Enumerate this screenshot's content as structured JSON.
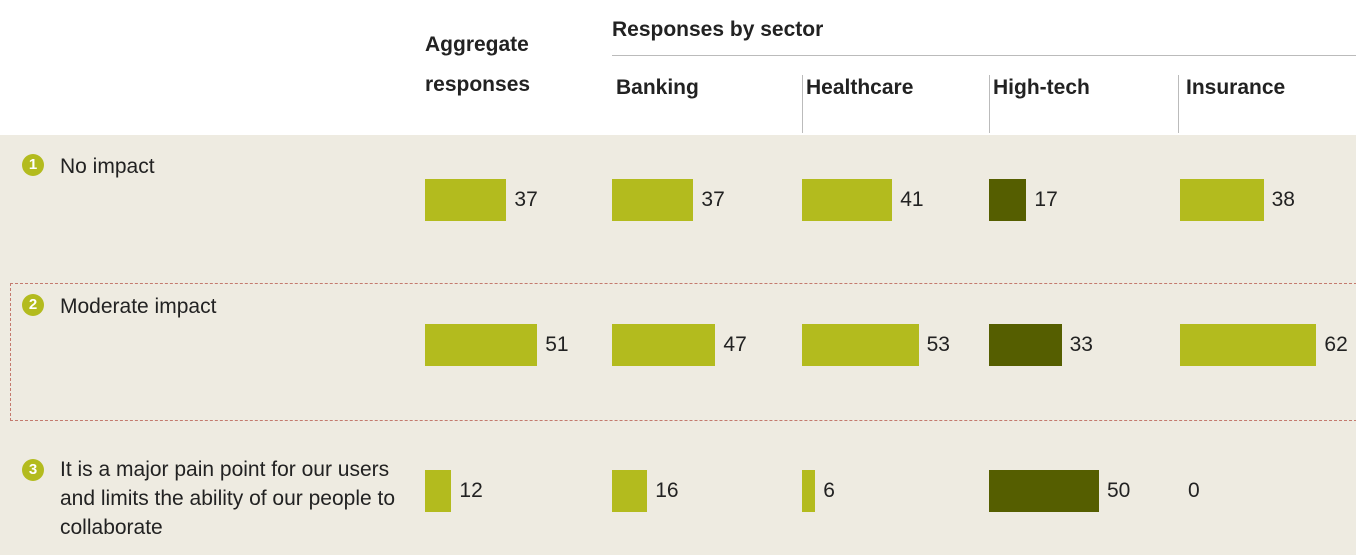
{
  "chart_data": {
    "type": "bar",
    "group_label": "Responses by sector",
    "category_numbers": [
      1,
      2,
      3
    ],
    "categories": [
      "No impact",
      "Moderate impact",
      "It is a major pain point for our users and limits the ability of our people to collaborate"
    ],
    "series": [
      {
        "name": "Aggregate responses",
        "color": "#b3bb1e",
        "values": [
          37,
          51,
          12
        ]
      },
      {
        "name": "Banking",
        "color": "#b3bb1e",
        "values": [
          37,
          47,
          16
        ]
      },
      {
        "name": "Healthcare",
        "color": "#b3bb1e",
        "values": [
          41,
          53,
          6
        ]
      },
      {
        "name": "High-tech",
        "color": "#555e00",
        "values": [
          17,
          33,
          50
        ]
      },
      {
        "name": "Insurance",
        "color": "#b3bb1e",
        "values": [
          38,
          62,
          0
        ]
      }
    ]
  }
}
